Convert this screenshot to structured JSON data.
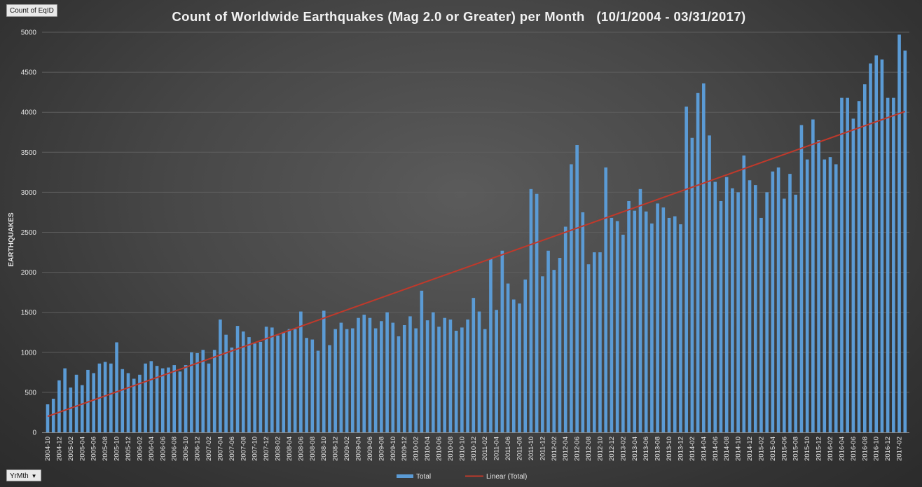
{
  "field_buttons": {
    "count_label": "Count of EqID",
    "axis_label": "YrMth"
  },
  "colors": {
    "bar": "#5b9bd5",
    "trendline": "#c0392b",
    "gridline": "#5e5e5e",
    "text": "#e6e6e6"
  },
  "chart_data": {
    "type": "bar",
    "title": "Count of Worldwide Earthquakes (Mag 2.0 or Greater) per Month   (10/1/2004 - 03/31/2017)",
    "xlabel": "",
    "ylabel": "EARTHQUAKES",
    "ylim": [
      0,
      5000
    ],
    "yticks": [
      0,
      500,
      1000,
      1500,
      2000,
      2500,
      3000,
      3500,
      4000,
      4500,
      5000
    ],
    "grid": true,
    "legend_position": "bottom",
    "x_tick_labels": [
      "2004-10",
      "2004-12",
      "2005-02",
      "2005-04",
      "2005-06",
      "2005-08",
      "2005-10",
      "2005-12",
      "2006-02",
      "2006-04",
      "2006-06",
      "2006-08",
      "2006-10",
      "2006-12",
      "2007-02",
      "2007-04",
      "2007-06",
      "2007-08",
      "2007-10",
      "2007-12",
      "2008-02",
      "2008-04",
      "2008-06",
      "2008-08",
      "2008-10",
      "2008-12",
      "2009-02",
      "2009-04",
      "2009-06",
      "2009-08",
      "2009-10",
      "2009-12",
      "2010-02",
      "2010-04",
      "2010-06",
      "2010-08",
      "2010-10",
      "2010-12",
      "2011-02",
      "2011-04",
      "2011-06",
      "2011-08",
      "2011-10",
      "2011-12",
      "2012-02",
      "2012-04",
      "2012-06",
      "2012-08",
      "2012-10",
      "2012-12",
      "2013-02",
      "2013-04",
      "2013-06",
      "2013-08",
      "2013-10",
      "2013-12",
      "2014-02",
      "2014-04",
      "2014-06",
      "2014-08",
      "2014-10",
      "2014-12",
      "2015-02",
      "2015-04",
      "2015-06",
      "2015-08",
      "2015-10",
      "2015-12",
      "2016-02",
      "2016-04",
      "2016-06",
      "2016-08",
      "2016-10",
      "2016-12",
      "2017-02"
    ],
    "series": [
      {
        "name": "Total",
        "values": [
          350,
          420,
          650,
          800,
          560,
          720,
          590,
          780,
          740,
          860,
          880,
          860,
          1125,
          790,
          740,
          670,
          720,
          860,
          890,
          830,
          800,
          810,
          840,
          760,
          840,
          1000,
          990,
          1030,
          860,
          1030,
          1410,
          1220,
          1060,
          1330,
          1260,
          1190,
          1110,
          1130,
          1320,
          1310,
          1210,
          1250,
          1290,
          1290,
          1510,
          1180,
          1160,
          1020,
          1520,
          1090,
          1290,
          1370,
          1290,
          1300,
          1430,
          1470,
          1430,
          1300,
          1390,
          1500,
          1370,
          1200,
          1340,
          1450,
          1300,
          1770,
          1400,
          1500,
          1320,
          1430,
          1410,
          1270,
          1310,
          1410,
          1680,
          1510,
          1290,
          2170,
          1530,
          2270,
          1860,
          1660,
          1610,
          1910,
          3040,
          2980,
          1950,
          2270,
          2030,
          2180,
          2570,
          3350,
          3590,
          2750,
          2100,
          2250,
          2250,
          3310,
          2680,
          2640,
          2470,
          2890,
          2770,
          3040,
          2760,
          2610,
          2860,
          2810,
          2680,
          2700,
          2600,
          4070,
          3680,
          4240,
          4360,
          3710,
          3130,
          2890,
          3190,
          3050,
          3000,
          3460,
          3150,
          3090,
          2680,
          3000,
          3260,
          3310,
          2920,
          3230,
          2970,
          3840,
          3410,
          3910,
          3650,
          3410,
          3440,
          3350,
          4180,
          4180,
          3920,
          4140,
          4350,
          4610,
          4710,
          4660,
          4180,
          4180,
          4970,
          4770
        ]
      },
      {
        "name": "Linear (Total)",
        "type": "trendline",
        "start_value": 200,
        "end_value": 4010
      }
    ]
  }
}
